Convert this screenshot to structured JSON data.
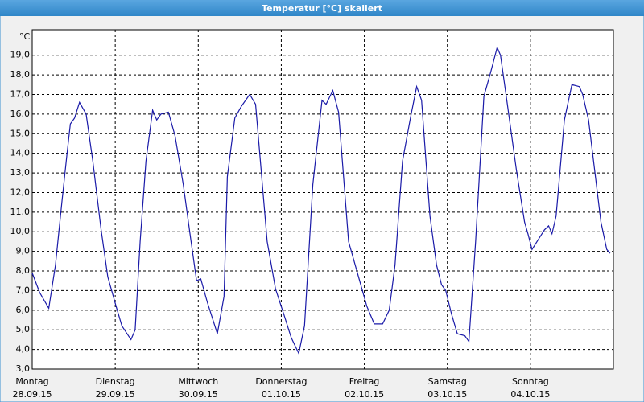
{
  "chart_data": {
    "type": "line",
    "title": "Temperatur [°C] skaliert",
    "y_label": "°C",
    "series": [
      {
        "name": "Temperatur",
        "color": "#1a1aa8",
        "x": [
          0,
          0.09,
          0.2,
          0.28,
          0.36,
          0.42,
          0.46,
          0.51,
          0.57,
          0.65,
          0.73,
          0.83,
          0.91,
          1.01,
          1.08,
          1.19,
          1.24,
          1.3,
          1.37,
          1.45,
          1.5,
          1.55,
          1.64,
          1.72,
          1.82,
          1.9,
          1.98,
          2.03,
          2.11,
          2.23,
          2.31,
          2.35,
          2.44,
          2.52,
          2.62,
          2.69,
          2.83,
          2.93,
          3.03,
          3.12,
          3.21,
          3.28,
          3.38,
          3.49,
          3.54,
          3.62,
          3.69,
          3.81,
          3.93,
          4.03,
          4.12,
          4.22,
          4.3,
          4.37,
          4.46,
          4.56,
          4.63,
          4.69,
          4.79,
          4.87,
          4.93,
          4.98,
          5.05,
          5.12,
          5.21,
          5.26,
          5.34,
          5.44,
          5.52,
          5.6,
          5.64,
          5.71,
          5.83,
          5.93,
          5.97,
          6.02,
          6.08,
          6.17,
          6.22,
          6.26,
          6.31,
          6.41,
          6.5,
          6.59,
          6.63,
          6.7,
          6.85,
          6.92,
          6.96
        ],
        "values": [
          7.9,
          6.9,
          6.1,
          8.3,
          11.6,
          14.0,
          15.5,
          15.8,
          16.6,
          16.0,
          13.6,
          10.1,
          7.7,
          6.2,
          5.2,
          4.5,
          5.0,
          9.5,
          13.6,
          16.2,
          15.7,
          16.0,
          16.1,
          14.9,
          12.4,
          9.9,
          7.5,
          7.6,
          6.4,
          4.8,
          6.7,
          12.8,
          15.8,
          16.4,
          17.0,
          16.5,
          9.5,
          7.1,
          5.8,
          4.6,
          3.8,
          5.2,
          12.4,
          16.7,
          16.5,
          17.2,
          16.1,
          9.5,
          7.7,
          6.2,
          5.3,
          5.3,
          6.0,
          8.3,
          13.6,
          15.9,
          17.4,
          16.7,
          10.8,
          8.3,
          7.3,
          7.0,
          5.8,
          4.8,
          4.7,
          4.4,
          9.5,
          16.9,
          18.1,
          19.4,
          19.0,
          16.9,
          13.2,
          10.5,
          9.9,
          9.1,
          9.5,
          10.1,
          10.3,
          9.9,
          10.8,
          15.7,
          17.5,
          17.4,
          17.0,
          15.7,
          10.5,
          9.1,
          8.9
        ]
      }
    ],
    "xlim": [
      0,
      7
    ],
    "xticks": [
      {
        "value": 0,
        "label": "Montag"
      },
      {
        "value": 1,
        "label": "Dienstag"
      },
      {
        "value": 2,
        "label": "Mittwoch"
      },
      {
        "value": 3,
        "label": "Donnerstag"
      },
      {
        "value": 4,
        "label": "Freitag"
      },
      {
        "value": 5,
        "label": "Samstag"
      },
      {
        "value": 6,
        "label": "Sonntag"
      }
    ],
    "xtick_dates": [
      "28.09.15",
      "29.09.15",
      "30.09.15",
      "01.10.15",
      "02.10.15",
      "03.10.15",
      "04.10.15"
    ],
    "ylim": [
      3,
      20.3
    ],
    "yticks": [
      {
        "value": 3,
        "label": "3,0"
      },
      {
        "value": 4,
        "label": "4,0"
      },
      {
        "value": 5,
        "label": "5,0"
      },
      {
        "value": 6,
        "label": "6,0"
      },
      {
        "value": 7,
        "label": "7,0"
      },
      {
        "value": 8,
        "label": "8,0"
      },
      {
        "value": 9,
        "label": "9,0"
      },
      {
        "value": 10,
        "label": "10,0"
      },
      {
        "value": 11,
        "label": "11,0"
      },
      {
        "value": 12,
        "label": "12,0"
      },
      {
        "value": 13,
        "label": "13,0"
      },
      {
        "value": 14,
        "label": "14,0"
      },
      {
        "value": 15,
        "label": "15,0"
      },
      {
        "value": 16,
        "label": "16,0"
      },
      {
        "value": 17,
        "label": "17,0"
      },
      {
        "value": 18,
        "label": "18,0"
      },
      {
        "value": 19,
        "label": "19,0"
      }
    ],
    "grid": true
  }
}
